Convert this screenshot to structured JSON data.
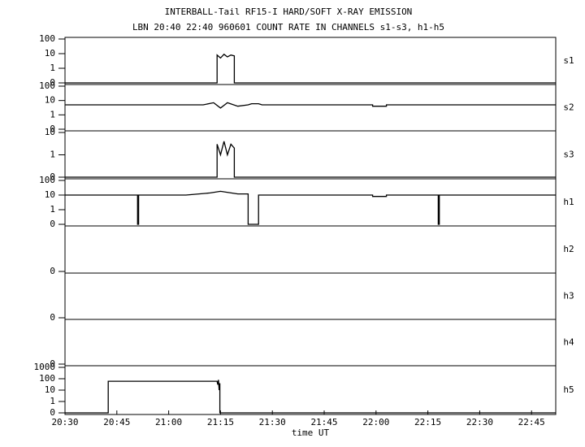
{
  "chart_data": [
    {
      "type": "line",
      "title": "INTERBALL-Tail RF15-I HARD/SOFT X-RAY EMISSION",
      "subtitle": "LBN 20:40 22:40 960601  COUNT RATE IN CHANNELS s1-s3, h1-h5",
      "name": "s1",
      "color": "#000000",
      "xlim": [
        1230,
        1372
      ],
      "ylim": [
        0,
        100
      ],
      "yticks": [
        0,
        1,
        10,
        100
      ],
      "x": [
        1230,
        1274,
        1274,
        1275,
        1276,
        1277,
        1278,
        1279,
        1279,
        1372
      ],
      "values": [
        0,
        0,
        8,
        5,
        9,
        6,
        8,
        7,
        0,
        0
      ]
    },
    {
      "type": "line",
      "name": "s2",
      "color": "#000000",
      "xlim": [
        1230,
        1372
      ],
      "ylim": [
        0,
        100
      ],
      "yticks": [
        0,
        1,
        10,
        100
      ],
      "x": [
        1230,
        1240,
        1250,
        1260,
        1270,
        1273,
        1275,
        1277,
        1280,
        1283,
        1284,
        1286,
        1287,
        1300,
        1310,
        1319,
        1319,
        1323,
        1323,
        1330,
        1345,
        1360,
        1372
      ],
      "values": [
        5,
        5,
        5,
        5,
        5,
        7,
        3,
        7,
        4,
        5,
        6,
        6,
        5,
        5,
        5,
        5,
        4,
        4,
        5,
        5,
        5,
        5,
        5
      ]
    },
    {
      "type": "line",
      "name": "s3",
      "color": "#000000",
      "xlim": [
        1230,
        1372
      ],
      "ylim": [
        0,
        10
      ],
      "yticks": [
        0,
        1,
        10
      ],
      "x": [
        1230,
        1274,
        1274,
        1275,
        1276,
        1277,
        1278,
        1279,
        1279,
        1372
      ],
      "values": [
        0,
        0,
        3,
        1,
        4,
        1,
        3,
        2,
        0,
        0
      ]
    },
    {
      "type": "line",
      "name": "h1",
      "color": "#000000",
      "xlim": [
        1230,
        1372
      ],
      "ylim": [
        0,
        100
      ],
      "yticks": [
        0,
        1,
        10,
        100
      ],
      "x": [
        1230,
        1245,
        1251,
        1251,
        1251.3,
        1251.3,
        1265,
        1272,
        1275,
        1280,
        1283,
        1283,
        1286,
        1286,
        1300,
        1319,
        1319,
        1323,
        1323,
        1338,
        1338,
        1338.3,
        1338.3,
        1355,
        1372
      ],
      "values": [
        10,
        10,
        10,
        0,
        0,
        10,
        10,
        14,
        18,
        12,
        12,
        0,
        0,
        10,
        10,
        10,
        8,
        8,
        10,
        10,
        0,
        0,
        10,
        10,
        10
      ]
    },
    {
      "type": "line",
      "name": "h2",
      "color": "#000000",
      "xlim": [
        1230,
        1372
      ],
      "ylim": [
        0,
        100
      ],
      "yticks": [
        0
      ],
      "x": [],
      "values": []
    },
    {
      "type": "line",
      "name": "h3",
      "color": "#000000",
      "xlim": [
        1230,
        1372
      ],
      "ylim": [
        0,
        100
      ],
      "yticks": [
        0
      ],
      "x": [],
      "values": []
    },
    {
      "type": "line",
      "name": "h4",
      "color": "#000000",
      "xlim": [
        1230,
        1372
      ],
      "ylim": [
        0,
        100
      ],
      "yticks": [
        0
      ],
      "x": [],
      "values": []
    },
    {
      "type": "line",
      "name": "h5",
      "color": "#000000",
      "xlim": [
        1230,
        1372
      ],
      "ylim": [
        0,
        1000
      ],
      "yticks": [
        0,
        1,
        10,
        100,
        1000
      ],
      "xlabel": "time UT",
      "xticks": [
        {
          "value": 1230,
          "label": "20:30"
        },
        {
          "value": 1245,
          "label": "20:45"
        },
        {
          "value": 1260,
          "label": "21:00"
        },
        {
          "value": 1275,
          "label": "21:15"
        },
        {
          "value": 1290,
          "label": "21:30"
        },
        {
          "value": 1305,
          "label": "21:45"
        },
        {
          "value": 1320,
          "label": "22:00"
        },
        {
          "value": 1335,
          "label": "22:15"
        },
        {
          "value": 1350,
          "label": "22:30"
        },
        {
          "value": 1365,
          "label": "22:45"
        }
      ],
      "x": [
        1230,
        1242.5,
        1242.5,
        1274,
        1274.2,
        1274.4,
        1274.6,
        1274.8,
        1274.8,
        1372
      ],
      "values": [
        0,
        0,
        60,
        60,
        30,
        80,
        10,
        40,
        0,
        0
      ]
    }
  ]
}
